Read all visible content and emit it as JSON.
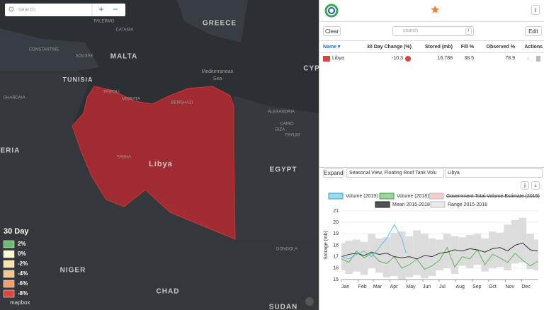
{
  "map": {
    "search_placeholder": "search",
    "zoom_in": "+",
    "zoom_out": "−",
    "labels": [
      "PALERMO",
      "CATANIA",
      "GREECE",
      "MALTA",
      "TUNISIA",
      "Mediterranean",
      "Sea",
      "CYP",
      "TRIPOLI",
      "MISRATA",
      "BENGHAZI",
      "Libya",
      "SABHA",
      "GERIA",
      "EGYPT",
      "ALEXANDRIA",
      "CAIRO",
      "FAYUM",
      "GIZA",
      "NIGER",
      "CHAD",
      "SUDAN",
      "DONGOLA",
      "GHARDAIA",
      "CONSTANTINE",
      "SOUSSE"
    ],
    "legend": {
      "title": "30 Day",
      "items": [
        {
          "label": "2%",
          "color": "#6cc06c"
        },
        {
          "label": "0%",
          "color": "#fffbd0"
        },
        {
          "label": "-2%",
          "color": "#fde3a8"
        },
        {
          "label": "-4%",
          "color": "#f9c58a"
        },
        {
          "label": "-6%",
          "color": "#f0a06a"
        },
        {
          "label": "-8%",
          "color": "#d9453f"
        }
      ]
    },
    "attribution": "mapbox"
  },
  "panel": {
    "clear": "Clear",
    "search_placeholder": "search",
    "search_key": "/",
    "edit": "Edit",
    "info": "i",
    "table": {
      "headers": [
        "Name▼",
        "30 Day Change (%)",
        "Stored (mb)",
        "Fill %",
        "Observed %",
        "Actions"
      ],
      "rows": [
        [
          "Libya",
          -10.3,
          16.788,
          38.5,
          78.9
        ]
      ]
    },
    "expand": "Expand",
    "view_select": "Seasonal View, Floating Roof Tank Volu",
    "region_select": "Libya"
  },
  "chart_data": {
    "type": "line",
    "ylabel": "Storage (mb)",
    "xlim": [
      0,
      365
    ],
    "ylim": [
      15,
      21
    ],
    "yticks": [
      15,
      16,
      17,
      18,
      19,
      20,
      21
    ],
    "xticks": [
      {
        "value": 0,
        "label": "Jan"
      },
      {
        "value": 31,
        "label": "Feb"
      },
      {
        "value": 59,
        "label": "Mar"
      },
      {
        "value": 90,
        "label": "Apr"
      },
      {
        "value": 120,
        "label": "May"
      },
      {
        "value": 151,
        "label": "Jun"
      },
      {
        "value": 181,
        "label": "Jul"
      },
      {
        "value": 212,
        "label": "Aug"
      },
      {
        "value": 243,
        "label": "Sep"
      },
      {
        "value": 273,
        "label": "Oct"
      },
      {
        "value": 304,
        "label": "Nov"
      },
      {
        "value": 334,
        "label": "Dec"
      }
    ],
    "series": [
      {
        "name": "Volume (2019)",
        "color": "#5bc0de",
        "x": [
          0,
          14,
          28,
          42,
          56,
          70,
          84,
          98,
          112,
          120
        ],
        "values": [
          17.0,
          16.8,
          17.2,
          17.5,
          17.0,
          17.8,
          18.6,
          19.8,
          18.6,
          17.3
        ]
      },
      {
        "name": "Volume (2018)",
        "color": "#5cb85c",
        "x": [
          0,
          14,
          28,
          42,
          56,
          70,
          84,
          98,
          112,
          126,
          140,
          154,
          168,
          182,
          196,
          210,
          224,
          238,
          252,
          266,
          280,
          294,
          308,
          322,
          336,
          350,
          364
        ],
        "values": [
          16.8,
          16.5,
          17.5,
          16.9,
          17.3,
          16.6,
          16.4,
          17.0,
          16.0,
          16.3,
          16.8,
          15.9,
          16.2,
          16.7,
          17.8,
          16.1,
          17.0,
          16.8,
          17.6,
          16.3,
          17.2,
          16.9,
          16.5,
          17.3,
          16.7,
          16.2,
          16.6
        ]
      },
      {
        "name": "Government Total Volume Estimate (2019)",
        "color": "#f4a6a6",
        "hidden": true,
        "x": [],
        "values": []
      },
      {
        "name": "Mean 2015-2018",
        "color": "#333333",
        "x": [
          0,
          14,
          28,
          42,
          56,
          70,
          84,
          98,
          112,
          126,
          140,
          154,
          168,
          182,
          196,
          210,
          224,
          238,
          252,
          266,
          280,
          294,
          308,
          322,
          336,
          350,
          364
        ],
        "values": [
          17.0,
          17.2,
          17.3,
          17.1,
          17.4,
          17.2,
          17.3,
          17.0,
          16.9,
          17.0,
          16.8,
          17.1,
          17.0,
          17.3,
          17.4,
          17.6,
          17.5,
          17.7,
          17.6,
          17.4,
          17.7,
          17.8,
          17.5,
          18.0,
          18.2,
          17.6,
          17.5
        ]
      },
      {
        "name": "Range 2015-2018",
        "color": "#dcdcdc",
        "x": [
          0,
          14,
          28,
          42,
          56,
          70,
          84,
          98,
          112,
          126,
          140,
          154,
          168,
          182,
          196,
          210,
          224,
          238,
          252,
          266,
          280,
          294,
          308,
          322,
          336,
          350,
          364
        ],
        "low": [
          15.8,
          15.5,
          15.7,
          15.4,
          16.0,
          15.6,
          15.2,
          15.3,
          15.0,
          15.2,
          15.4,
          15.1,
          15.3,
          15.8,
          16.0,
          15.5,
          16.2,
          16.0,
          16.3,
          15.7,
          16.0,
          16.1,
          15.8,
          16.4,
          16.5,
          15.9,
          15.8
        ],
        "high": [
          18.2,
          18.4,
          18.5,
          18.3,
          19.0,
          18.6,
          18.7,
          19.1,
          19.2,
          18.8,
          19.3,
          19.0,
          18.6,
          18.5,
          19.0,
          18.8,
          18.7,
          18.9,
          19.0,
          18.6,
          19.2,
          19.1,
          19.8,
          20.2,
          20.4,
          19.0,
          18.5
        ]
      }
    ]
  }
}
